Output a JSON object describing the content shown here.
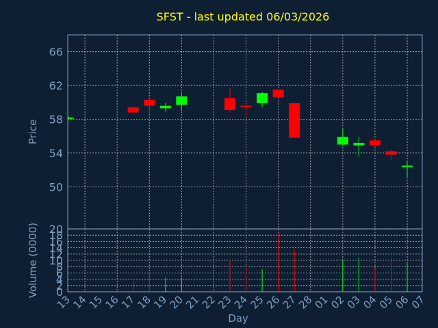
{
  "chart_data": [
    {
      "type": "candlestick",
      "title": "SFST - last updated 06/03/2026",
      "ylabel": "Price",
      "xlabel": "Day",
      "ylim": [
        45,
        68
      ],
      "yticks": [
        50,
        54,
        58,
        62,
        66
      ],
      "x_ticklabels": [
        "13",
        "14",
        "15",
        "16",
        "17",
        "18",
        "19",
        "20",
        "21",
        "22",
        "23",
        "24",
        "25",
        "26",
        "27",
        "28",
        "01",
        "02",
        "03",
        "04",
        "05",
        "06",
        "07"
      ],
      "grid": true,
      "colors": {
        "up": "#00ff00",
        "down": "#ff0000",
        "title": "#ffff00",
        "axis_text": "#7f9fbf",
        "grid": "#bfbfbf",
        "background": "#0f1f33"
      },
      "candles": [
        {
          "day": "13",
          "open": 58.2,
          "high": 58.3,
          "low": 58.1,
          "close": 58.2
        },
        {
          "day": "17",
          "open": 59.4,
          "high": 59.6,
          "low": 58.8,
          "close": 58.8
        },
        {
          "day": "18",
          "open": 60.3,
          "high": 60.4,
          "low": 58.7,
          "close": 59.6
        },
        {
          "day": "19",
          "open": 59.3,
          "high": 59.9,
          "low": 58.9,
          "close": 59.6
        },
        {
          "day": "20",
          "open": 59.7,
          "high": 61.0,
          "low": 59.0,
          "close": 60.7
        },
        {
          "day": "23",
          "open": 60.5,
          "high": 61.7,
          "low": 58.8,
          "close": 59.1
        },
        {
          "day": "24",
          "open": 59.6,
          "high": 59.8,
          "low": 58.3,
          "close": 59.5
        },
        {
          "day": "25",
          "open": 59.9,
          "high": 61.2,
          "low": 59.4,
          "close": 61.1
        },
        {
          "day": "26",
          "open": 61.5,
          "high": 61.6,
          "low": 60.6,
          "close": 60.6
        },
        {
          "day": "27",
          "open": 59.9,
          "high": 59.9,
          "low": 55.8,
          "close": 55.8
        },
        {
          "day": "02",
          "open": 55.0,
          "high": 56.9,
          "low": 54.8,
          "close": 55.9
        },
        {
          "day": "03",
          "open": 54.9,
          "high": 55.9,
          "low": 53.6,
          "close": 55.2
        },
        {
          "day": "04",
          "open": 55.5,
          "high": 55.6,
          "low": 54.7,
          "close": 54.9
        },
        {
          "day": "05",
          "open": 54.2,
          "high": 54.4,
          "low": 53.1,
          "close": 53.8
        },
        {
          "day": "06",
          "open": 52.4,
          "high": 53.0,
          "low": 51.0,
          "close": 52.5
        }
      ]
    },
    {
      "type": "bar",
      "ylabel": "Volume (0000)",
      "ylim": [
        0,
        20
      ],
      "yticks": [
        0,
        2,
        4,
        6,
        8,
        10,
        12,
        14,
        16,
        18,
        20
      ],
      "categories": [
        "17",
        "18",
        "19",
        "20",
        "23",
        "24",
        "25",
        "26",
        "27",
        "02",
        "03",
        "04",
        "05",
        "06"
      ],
      "values": [
        3.5,
        5.8,
        4.5,
        4.5,
        10.2,
        8.2,
        7.2,
        18.5,
        13.5,
        10.0,
        10.8,
        7.5,
        11.0,
        9.5
      ],
      "colors_by_bar": [
        "#ff0000",
        "#ff0000",
        "#00ff00",
        "#00ff00",
        "#ff0000",
        "#ff0000",
        "#00ff00",
        "#ff0000",
        "#ff0000",
        "#00ff00",
        "#00ff00",
        "#ff0000",
        "#ff0000",
        "#00ff00"
      ]
    }
  ]
}
